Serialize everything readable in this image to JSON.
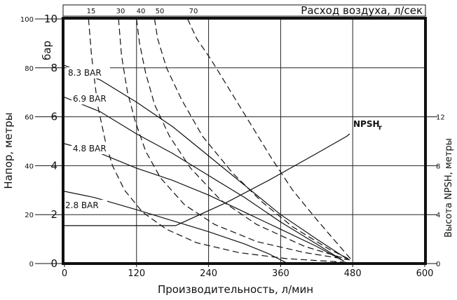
{
  "chart_data": {
    "type": "line",
    "title": "",
    "xlabel": "Производительность, л/мин",
    "ylabel_left_outer": "Напор, метры",
    "ylabel_left_inner": "бар",
    "ylabel_right": "Высота NPSH, метры",
    "top_axis_label": "Расход воздуха, л/сек",
    "xlim": [
      0,
      600
    ],
    "ylim_bar": [
      0,
      10
    ],
    "ylim_meters": [
      0,
      100
    ],
    "ylim_npsh_m": [
      0,
      12
    ],
    "x_ticks": [
      "0",
      "120",
      "240",
      "360",
      "480",
      "600"
    ],
    "y_ticks_bar": [
      "0",
      "2",
      "4",
      "6",
      "8",
      "10"
    ],
    "y_ticks_m": [
      "0",
      "20",
      "40",
      "60",
      "80",
      "100"
    ],
    "y_ticks_npsh": [
      "0",
      "4",
      "8",
      "12"
    ],
    "top_ticks": [
      "15",
      "30",
      "40",
      "50",
      "70"
    ],
    "grid": true,
    "pressure_curves": [
      {
        "label": "8.3 BAR",
        "points": [
          [
            0,
            8.1
          ],
          [
            60,
            7.5
          ],
          [
            120,
            6.6
          ],
          [
            180,
            5.6
          ],
          [
            240,
            4.4
          ],
          [
            300,
            3.2
          ],
          [
            360,
            2.0
          ],
          [
            420,
            1.0
          ],
          [
            470,
            0.2
          ]
        ]
      },
      {
        "label": "6.9 BAR",
        "points": [
          [
            0,
            6.8
          ],
          [
            60,
            6.2
          ],
          [
            120,
            5.3
          ],
          [
            180,
            4.5
          ],
          [
            240,
            3.6
          ],
          [
            300,
            2.7
          ],
          [
            360,
            1.7
          ],
          [
            420,
            0.8
          ],
          [
            465,
            0.1
          ]
        ]
      },
      {
        "label": "4.8 BAR",
        "points": [
          [
            0,
            4.9
          ],
          [
            60,
            4.5
          ],
          [
            120,
            3.9
          ],
          [
            180,
            3.4
          ],
          [
            240,
            2.8
          ],
          [
            300,
            2.1
          ],
          [
            360,
            1.4
          ],
          [
            420,
            0.7
          ],
          [
            465,
            0.1
          ]
        ]
      },
      {
        "label": "2.8 BAR",
        "points": [
          [
            0,
            2.95
          ],
          [
            50,
            2.7
          ],
          [
            120,
            2.2
          ],
          [
            180,
            1.75
          ],
          [
            240,
            1.3
          ],
          [
            300,
            0.8
          ],
          [
            340,
            0.4
          ],
          [
            368,
            0.05
          ]
        ]
      }
    ],
    "air_curves": [
      {
        "label": "15",
        "points": [
          [
            40,
            10.0
          ],
          [
            45,
            8.5
          ],
          [
            55,
            6.5
          ],
          [
            68,
            5.0
          ],
          [
            80,
            4.0
          ],
          [
            100,
            3.0
          ],
          [
            130,
            2.1
          ],
          [
            170,
            1.4
          ],
          [
            220,
            0.85
          ],
          [
            290,
            0.45
          ],
          [
            370,
            0.2
          ],
          [
            470,
            0.05
          ]
        ]
      },
      {
        "label": "30",
        "points": [
          [
            90,
            10.0
          ],
          [
            95,
            8.5
          ],
          [
            105,
            7.0
          ],
          [
            118,
            5.8
          ],
          [
            135,
            4.6
          ],
          [
            160,
            3.5
          ],
          [
            200,
            2.4
          ],
          [
            250,
            1.6
          ],
          [
            320,
            0.9
          ],
          [
            400,
            0.45
          ],
          [
            475,
            0.15
          ]
        ]
      },
      {
        "label": "40",
        "points": [
          [
            120,
            10.0
          ],
          [
            125,
            9.0
          ],
          [
            135,
            7.8
          ],
          [
            150,
            6.5
          ],
          [
            175,
            5.2
          ],
          [
            210,
            3.9
          ],
          [
            260,
            2.6
          ],
          [
            320,
            1.6
          ],
          [
            400,
            0.7
          ],
          [
            475,
            0.15
          ]
        ]
      },
      {
        "label": "50",
        "points": [
          [
            150,
            10.0
          ],
          [
            155,
            9.2
          ],
          [
            170,
            8.0
          ],
          [
            195,
            6.7
          ],
          [
            230,
            5.2
          ],
          [
            280,
            3.7
          ],
          [
            330,
            2.5
          ],
          [
            380,
            1.5
          ],
          [
            440,
            0.6
          ],
          [
            477,
            0.15
          ]
        ]
      },
      {
        "label": "70",
        "points": [
          [
            205,
            10.0
          ],
          [
            220,
            9.2
          ],
          [
            245,
            8.3
          ],
          [
            275,
            7.1
          ],
          [
            310,
            5.7
          ],
          [
            345,
            4.3
          ],
          [
            380,
            3.0
          ],
          [
            420,
            1.8
          ],
          [
            455,
            0.8
          ],
          [
            478,
            0.15
          ]
        ]
      }
    ],
    "npsh": {
      "label": "NPSH",
      "sub": "r",
      "points": [
        [
          0,
          3.1
        ],
        [
          185,
          3.1
        ],
        [
          270,
          5.0
        ],
        [
          340,
          6.8
        ],
        [
          420,
          9.0
        ],
        [
          470,
          10.4
        ],
        [
          475,
          10.6
        ]
      ]
    }
  }
}
